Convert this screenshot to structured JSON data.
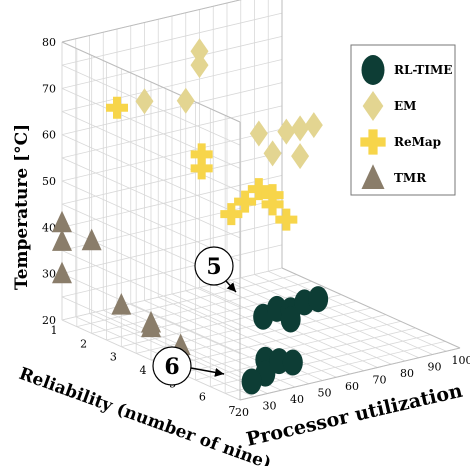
{
  "chart_data": {
    "type": "scatter",
    "xlabel": "Processor utilization (%)",
    "ylabel": "Reliability (number of nine)",
    "zlabel": "Temperature [°C]",
    "x_ticks": [
      20,
      30,
      40,
      50,
      60,
      70,
      80,
      90,
      100
    ],
    "y_ticks": [
      1,
      2,
      3,
      4,
      5,
      6,
      7
    ],
    "z_ticks": [
      20,
      30,
      40,
      50,
      60,
      70,
      80
    ],
    "xlim": [
      20,
      100
    ],
    "ylim": [
      1,
      7
    ],
    "zlim": [
      20,
      80
    ],
    "grid": true,
    "legend_position": "top-right",
    "series": [
      {
        "name": "RL-TIME",
        "marker": "circle",
        "color": "#0d3d35",
        "points": [
          {
            "x": 40,
            "y": 6,
            "z": 23
          },
          {
            "x": 40,
            "y": 6,
            "z": 20
          },
          {
            "x": 45,
            "y": 6,
            "z": 22
          },
          {
            "x": 50,
            "y": 6,
            "z": 21
          },
          {
            "x": 35,
            "y": 6,
            "z": 19
          },
          {
            "x": 50,
            "y": 5,
            "z": 28
          },
          {
            "x": 55,
            "y": 5,
            "z": 29
          },
          {
            "x": 60,
            "y": 5,
            "z": 28
          },
          {
            "x": 65,
            "y": 5,
            "z": 29
          },
          {
            "x": 60,
            "y": 5,
            "z": 26
          },
          {
            "x": 70,
            "y": 5,
            "z": 29
          }
        ]
      },
      {
        "name": "EM",
        "marker": "diamond",
        "color": "#e3d591",
        "points": [
          {
            "x": 70,
            "y": 1,
            "z": 71
          },
          {
            "x": 70,
            "y": 1,
            "z": 68
          },
          {
            "x": 50,
            "y": 1,
            "z": 63
          },
          {
            "x": 65,
            "y": 1,
            "z": 61
          },
          {
            "x": 70,
            "y": 3,
            "z": 59
          },
          {
            "x": 80,
            "y": 3,
            "z": 58
          },
          {
            "x": 85,
            "y": 3,
            "z": 58
          },
          {
            "x": 90,
            "y": 3,
            "z": 58
          },
          {
            "x": 75,
            "y": 3,
            "z": 54
          },
          {
            "x": 85,
            "y": 3,
            "z": 52
          }
        ]
      },
      {
        "name": "ReMap",
        "marker": "plus",
        "color": "#f7d54a",
        "points": [
          {
            "x": 40,
            "y": 1,
            "z": 63
          },
          {
            "x": 60,
            "y": 2,
            "z": 53
          },
          {
            "x": 60,
            "y": 2,
            "z": 50
          },
          {
            "x": 70,
            "y": 3,
            "z": 47
          },
          {
            "x": 65,
            "y": 3,
            "z": 45
          },
          {
            "x": 75,
            "y": 3,
            "z": 45
          },
          {
            "x": 75,
            "y": 3,
            "z": 43
          },
          {
            "x": 60,
            "y": 3,
            "z": 43
          },
          {
            "x": 80,
            "y": 3,
            "z": 39
          }
        ]
      },
      {
        "name": "TMR",
        "marker": "triangle",
        "color": "#8a7d6a",
        "points": [
          {
            "x": 20,
            "y": 1,
            "z": 41
          },
          {
            "x": 20,
            "y": 1,
            "z": 37
          },
          {
            "x": 20,
            "y": 2,
            "z": 40
          },
          {
            "x": 20,
            "y": 3,
            "z": 29
          },
          {
            "x": 20,
            "y": 4,
            "z": 28
          },
          {
            "x": 20,
            "y": 4,
            "z": 27
          },
          {
            "x": 20,
            "y": 5,
            "z": 26
          },
          {
            "x": 20,
            "y": 5,
            "z": 25
          },
          {
            "x": 20,
            "y": 5,
            "z": 24
          },
          {
            "x": 20,
            "y": 1,
            "z": 30
          }
        ]
      }
    ],
    "annotations": [
      {
        "text": "5",
        "series": "RL-TIME",
        "near": {
          "x": 50,
          "y": 5,
          "z": 29
        }
      },
      {
        "text": "6",
        "series": "RL-TIME",
        "near": {
          "x": 40,
          "y": 6,
          "z": 23
        }
      }
    ]
  }
}
